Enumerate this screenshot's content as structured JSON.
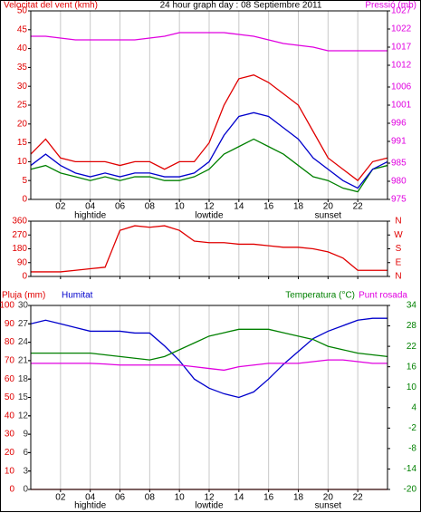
{
  "chart_data": [
    {
      "type": "line",
      "title": "24 hour graph day : 08 Septiembre 2011",
      "ylabel": "Velocitat del vent (kmh)",
      "y2label": "Pressió (mb)",
      "x": [
        0,
        1,
        2,
        3,
        4,
        5,
        6,
        7,
        8,
        9,
        10,
        11,
        12,
        13,
        14,
        15,
        16,
        17,
        18,
        19,
        20,
        21,
        22,
        23,
        24
      ],
      "xlim": [
        0,
        24
      ],
      "xticks": [
        {
          "value": 2,
          "label": "02"
        },
        {
          "value": 4,
          "label": "04"
        },
        {
          "value": 6,
          "label": "06"
        },
        {
          "value": 8,
          "label": "08"
        },
        {
          "value": 10,
          "label": "10"
        },
        {
          "value": 12,
          "label": "12"
        },
        {
          "value": 14,
          "label": "14"
        },
        {
          "value": 16,
          "label": "16"
        },
        {
          "value": 18,
          "label": "18"
        },
        {
          "value": 20,
          "label": "20"
        },
        {
          "value": 22,
          "label": "22"
        }
      ],
      "ylim": [
        0,
        50
      ],
      "yticks": [
        0,
        5,
        10,
        15,
        20,
        25,
        30,
        35,
        40,
        45,
        50
      ],
      "y2lim": [
        975,
        1027
      ],
      "y2ticks": [
        975,
        980,
        985,
        991,
        996,
        1001,
        1006,
        1012,
        1017,
        1022,
        1027
      ],
      "annotations": [
        {
          "text": "hightide",
          "x": 4
        },
        {
          "text": "lowtide",
          "x": 12
        },
        {
          "text": "sunset",
          "x": 20
        }
      ],
      "series": [
        {
          "color": "#e00000",
          "values": [
            12,
            16,
            11,
            10,
            10,
            10,
            9,
            10,
            10,
            8,
            10,
            10,
            15,
            25,
            32,
            33,
            31,
            28,
            25,
            18,
            11,
            8,
            5,
            10,
            11
          ]
        },
        {
          "color": "#008000",
          "values": [
            8,
            9,
            7,
            6,
            5,
            6,
            5,
            6,
            6,
            5,
            5,
            6,
            8,
            12,
            14,
            16,
            14,
            12,
            9,
            6,
            5,
            3,
            2,
            8,
            9
          ]
        },
        {
          "color": "#0000cc",
          "values": [
            9,
            12,
            9,
            7,
            6,
            7,
            6,
            7,
            7,
            6,
            6,
            7,
            10,
            17,
            22,
            23,
            22,
            19,
            16,
            11,
            8,
            5,
            3,
            8,
            10
          ]
        },
        {
          "color": "#e000e0",
          "axis": "y2",
          "values": [
            1020,
            1020,
            1019.5,
            1019,
            1019,
            1019,
            1019,
            1019,
            1019.5,
            1020,
            1021,
            1021,
            1021,
            1021,
            1020.5,
            1020,
            1019,
            1018,
            1017.5,
            1017,
            1016,
            1016,
            1016,
            1016,
            1016
          ]
        }
      ]
    },
    {
      "type": "line",
      "x": [
        0,
        1,
        2,
        3,
        4,
        5,
        6,
        7,
        8,
        9,
        10,
        11,
        12,
        13,
        14,
        15,
        16,
        17,
        18,
        19,
        20,
        21,
        22,
        23,
        24
      ],
      "xlim": [
        0,
        24
      ],
      "xticks": [
        2,
        4,
        6,
        8,
        10,
        12,
        14,
        16,
        18,
        20,
        22
      ],
      "ylim": [
        0,
        360
      ],
      "yticks": [
        0,
        90,
        180,
        270,
        360
      ],
      "y2lim": [
        0,
        360
      ],
      "y2ticks": [
        {
          "value": 0,
          "label": "N"
        },
        {
          "value": 90,
          "label": "E"
        },
        {
          "value": 180,
          "label": "S"
        },
        {
          "value": 270,
          "label": "W"
        },
        {
          "value": 360,
          "label": "N"
        }
      ],
      "series": [
        {
          "color": "#e00000",
          "values": [
            30,
            30,
            30,
            40,
            50,
            60,
            300,
            330,
            320,
            330,
            300,
            230,
            220,
            220,
            210,
            210,
            200,
            190,
            190,
            180,
            160,
            120,
            40,
            40,
            40
          ]
        }
      ]
    },
    {
      "type": "line",
      "x": [
        0,
        1,
        2,
        3,
        4,
        5,
        6,
        7,
        8,
        9,
        10,
        11,
        12,
        13,
        14,
        15,
        16,
        17,
        18,
        19,
        20,
        21,
        22,
        23,
        24
      ],
      "xlim": [
        0,
        24
      ],
      "xticks": [
        {
          "value": 2,
          "label": "02"
        },
        {
          "value": 4,
          "label": "04"
        },
        {
          "value": 6,
          "label": "06"
        },
        {
          "value": 8,
          "label": "08"
        },
        {
          "value": 10,
          "label": "10"
        },
        {
          "value": 12,
          "label": "12"
        },
        {
          "value": 14,
          "label": "14"
        },
        {
          "value": 16,
          "label": "16"
        },
        {
          "value": 18,
          "label": "18"
        },
        {
          "value": 20,
          "label": "20"
        },
        {
          "value": 22,
          "label": "22"
        }
      ],
      "ylim": [
        0,
        30
      ],
      "yticks": [
        0,
        3,
        6,
        9,
        12,
        15,
        18,
        21,
        24,
        27,
        30
      ],
      "yhlim": [
        0,
        100
      ],
      "yhticks": [
        0,
        10,
        20,
        30,
        40,
        50,
        60,
        70,
        80,
        90,
        100
      ],
      "y2lim": [
        -20,
        34
      ],
      "y2ticks": [
        -20,
        -14,
        -8,
        -2,
        4,
        10,
        16,
        22,
        28,
        34
      ],
      "annotations": [
        {
          "text": "hightide",
          "x": 4
        },
        {
          "text": "lowtide",
          "x": 12
        },
        {
          "text": "sunset",
          "x": 20
        }
      ],
      "series": [
        {
          "name": "Pluja (mm)",
          "color": "#e00000",
          "values": [
            0,
            0,
            0,
            0,
            0,
            0,
            0,
            0,
            0,
            0,
            0,
            0,
            0,
            0,
            0,
            0,
            0,
            0,
            0,
            0,
            0,
            0,
            0,
            0,
            0
          ]
        },
        {
          "name": "Humitat",
          "color": "#0000cc",
          "axis": "yh",
          "values": [
            90,
            92,
            90,
            88,
            86,
            86,
            86,
            85,
            85,
            78,
            70,
            60,
            55,
            52,
            50,
            53,
            60,
            68,
            75,
            82,
            86,
            89,
            92,
            93,
            93
          ]
        },
        {
          "name": "Temperatura (°C)",
          "color": "#008000",
          "axis": "y2",
          "values": [
            20,
            20,
            20,
            20,
            20,
            19.5,
            19,
            18.5,
            18,
            19,
            21,
            23,
            25,
            26,
            27,
            27,
            27,
            26,
            25,
            24,
            22,
            21,
            20,
            19.5,
            19
          ]
        },
        {
          "name": "Punt rosada",
          "color": "#e000e0",
          "axis": "y2",
          "values": [
            17,
            17,
            17,
            17,
            17,
            16.8,
            16.5,
            16.5,
            16.5,
            16.5,
            16.5,
            16,
            15.5,
            15,
            16,
            16.5,
            17,
            17,
            17,
            17.5,
            18,
            18,
            17.5,
            17,
            17
          ]
        }
      ]
    }
  ]
}
